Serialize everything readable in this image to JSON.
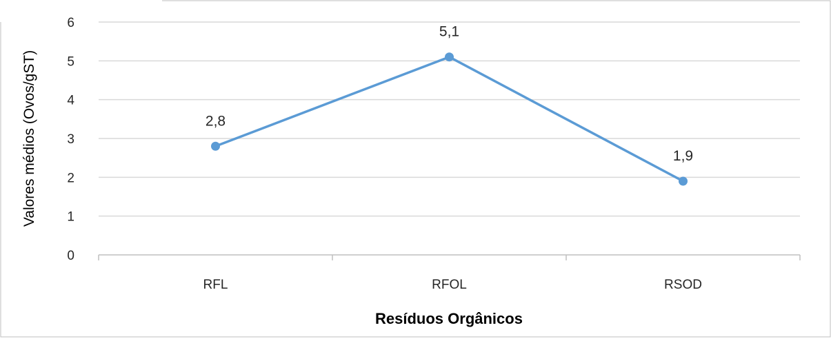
{
  "chart_data": {
    "type": "line",
    "title": "",
    "xlabel": "Resíduos Orgânicos",
    "ylabel": "Valores médios (Ovos/gST)",
    "categories": [
      "RFL",
      "RFOL",
      "RSOD"
    ],
    "series": [
      {
        "values": [
          2.8,
          5.1,
          1.9
        ],
        "labels": [
          "2,8",
          "5,1",
          "1,9"
        ],
        "color": "#5B9BD5"
      }
    ],
    "ylim": [
      0,
      6
    ],
    "yticks": [
      0,
      1,
      2,
      3,
      4,
      5,
      6
    ],
    "ytick_labels": [
      "0",
      "1",
      "2",
      "3",
      "4",
      "5",
      "6"
    ],
    "grid": true,
    "legend": "none"
  },
  "colors": {
    "gridline": "#D9D9D9",
    "axis": "#BFBFBF",
    "frame": "#BFBFBF"
  }
}
